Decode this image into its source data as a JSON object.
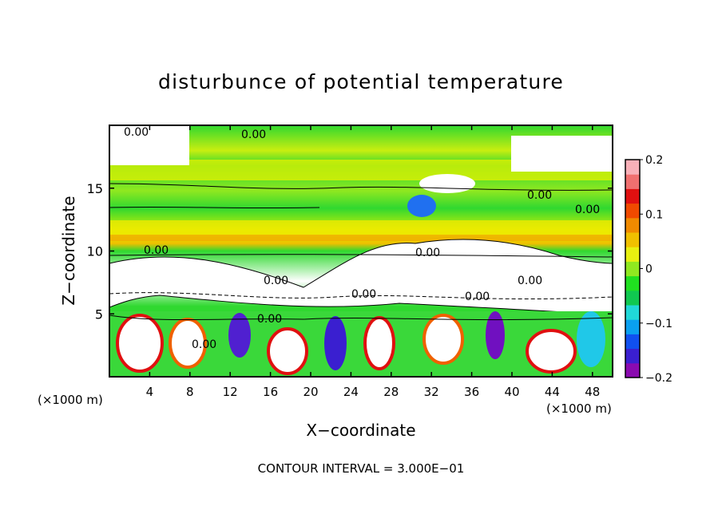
{
  "chart_data": {
    "type": "heatmap",
    "title": "disturbunce of potential temperature",
    "xlabel": "X−coordinate",
    "ylabel": "Z−coordinate",
    "x_unit_left": "(×1000 m)",
    "x_unit_right": "(×1000 m)",
    "x_ticks": [
      "4",
      "8",
      "12",
      "16",
      "20",
      "24",
      "28",
      "32",
      "36",
      "40",
      "44",
      "48"
    ],
    "x_tick_values": [
      4,
      8,
      12,
      16,
      20,
      24,
      28,
      32,
      36,
      40,
      44,
      48
    ],
    "y_ticks": [
      "5",
      "10",
      "15"
    ],
    "y_tick_values": [
      5,
      10,
      15
    ],
    "xlim": [
      0,
      50
    ],
    "ylim": [
      0,
      20
    ],
    "footer": "CONTOUR INTERVAL = 3.000E−01",
    "contour_labels": [
      "0.00",
      "0.00",
      "0.00",
      "0.00",
      "0.00",
      "0.00",
      "0.00",
      "0.00",
      "0.00",
      "0.00",
      "0.00",
      "0.00"
    ],
    "colorbar": {
      "ticks": [
        "0.2",
        "0.1",
        "0",
        "−0.1",
        "−0.2"
      ],
      "tick_values": [
        0.2,
        0.1,
        0,
        -0.1,
        -0.2
      ],
      "range": [
        -0.2,
        0.2
      ],
      "colors": [
        "#8a0ab0",
        "#3a1fd0",
        "#1050f0",
        "#0aa0f0",
        "#20d8d8",
        "#10c850",
        "#20e020",
        "#90e820",
        "#e8f010",
        "#f0c000",
        "#f08a00",
        "#f04a00",
        "#e01010",
        "#f07070",
        "#f8b0b8"
      ]
    },
    "colors": {
      "green": "#2fd82f",
      "yellow": "#f4f200",
      "white": "#ffffff"
    }
  }
}
